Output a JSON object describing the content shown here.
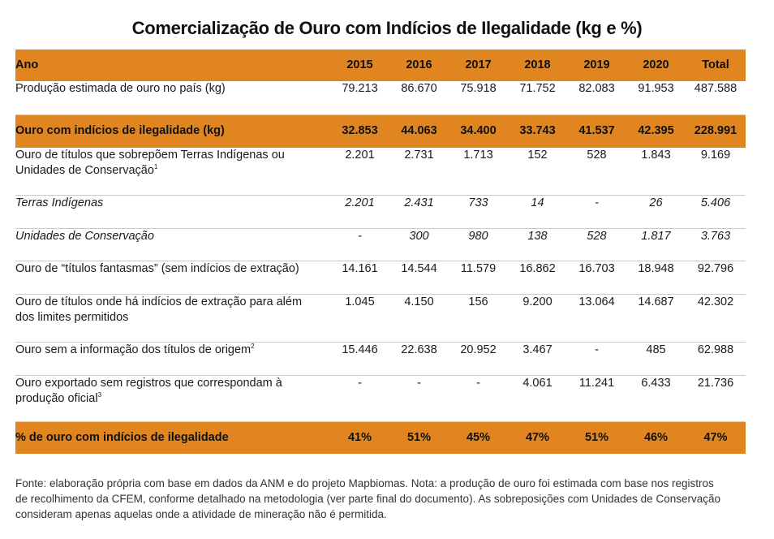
{
  "title": "Comercialização de Ouro com Indícios de Ilegalidade (kg e %)",
  "header": [
    "Ano",
    "2015",
    "2016",
    "2017",
    "2018",
    "2019",
    "2020",
    "Total"
  ],
  "rows": [
    {
      "label": "Produção estimada de ouro no país (kg)",
      "sup": "",
      "values": [
        "79.213",
        "86.670",
        "75.918",
        "71.752",
        "82.083",
        "91.953",
        "487.588"
      ]
    },
    {
      "label": "Ouro com indícios de ilegalidade (kg)",
      "sup": "",
      "values": [
        "32.853",
        "44.063",
        "34.400",
        "33.743",
        "41.537",
        "42.395",
        "228.991"
      ]
    },
    {
      "label_line1": "Ouro de títulos que sobrepõem Terras Indígenas ou",
      "label_line2": "Unidades de Conservação",
      "sup": "1",
      "values": [
        "2.201",
        "2.731",
        "1.713",
        "152",
        "528",
        "1.843",
        "9.169"
      ]
    },
    {
      "label": "Terras Indígenas",
      "sup": "",
      "values": [
        "2.201",
        "2.431",
        "733",
        "14",
        "-",
        "26",
        "5.406"
      ]
    },
    {
      "label": "Unidades de Conservação",
      "sup": "",
      "values": [
        "-",
        "300",
        "980",
        "138",
        "528",
        "1.817",
        "3.763"
      ]
    },
    {
      "label": "Ouro de “títulos fantasmas” (sem indícios de extração)",
      "sup": "",
      "values": [
        "14.161",
        "14.544",
        "11.579",
        "16.862",
        "16.703",
        "18.948",
        "92.796"
      ]
    },
    {
      "label_line1": "Ouro de títulos onde há indícios de extração para além",
      "label_line2": "dos limites permitidos",
      "sup": "",
      "values": [
        "1.045",
        "4.150",
        "156",
        "9.200",
        "13.064",
        "14.687",
        "42.302"
      ]
    },
    {
      "label": "Ouro sem a informação dos títulos de origem",
      "sup": "2",
      "values": [
        "15.446",
        "22.638",
        "20.952",
        "3.467",
        "-",
        "485",
        "62.988"
      ]
    },
    {
      "label_line1": "Ouro exportado sem registros que correspondam à",
      "label_line2": "produção oficial",
      "sup": "3",
      "values": [
        "-",
        "-",
        "-",
        "4.061",
        "11.241",
        "6.433",
        "21.736"
      ]
    },
    {
      "label": "% de ouro com indícios de ilegalidade",
      "sup": "",
      "values": [
        "41%",
        "51%",
        "45%",
        "47%",
        "51%",
        "46%",
        "47%"
      ]
    }
  ],
  "footer": {
    "line1": "Fonte: elaboração própria com base em dados da ANM e do projeto Mapbiomas. Nota: a produção de ouro foi estimada com base nos registros",
    "line2": "de recolhimento da CFEM, conforme detalhado na metodologia (ver parte final do documento). As sobreposições com Unidades de Conservação",
    "line3": "consideram apenas aquelas onde a atividade de mineração não é permitida."
  },
  "colors": {
    "highlight": "#e0851f",
    "rule": "#c9c9c9"
  }
}
